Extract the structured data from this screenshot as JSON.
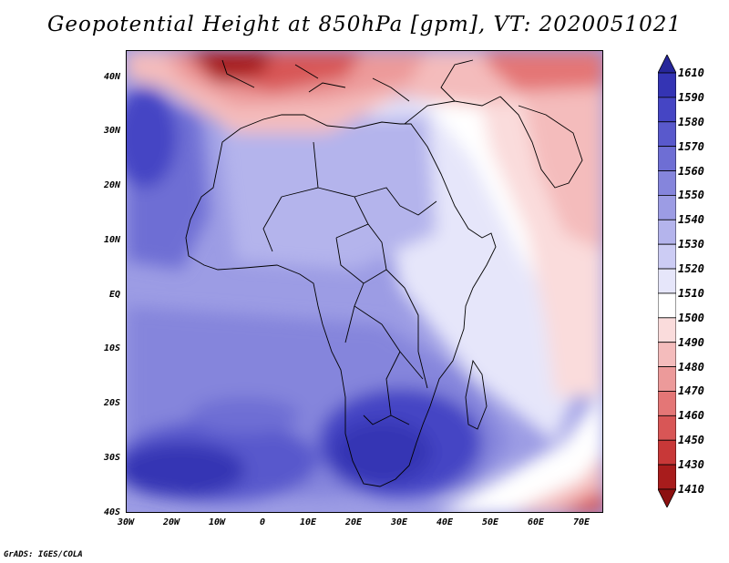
{
  "title": "Geopotential Height at 850hPa [gpm], VT: 2020051021",
  "footer": "GrADS: IGES/COLA",
  "map": {
    "variable": "Geopotential Height at 850hPa",
    "units": "gpm",
    "valid_time": "2020051021",
    "lon_range": [
      -30,
      75
    ],
    "lat_range": [
      -40,
      45
    ],
    "lat_labels": [
      "40N",
      "30N",
      "20N",
      "10N",
      "EQ",
      "10S",
      "20S",
      "30S",
      "40S"
    ],
    "lon_labels": [
      "30W",
      "20W",
      "10W",
      "0",
      "10E",
      "20E",
      "30E",
      "40E",
      "50E",
      "60E",
      "70E"
    ]
  },
  "colorbar": {
    "levels": [
      "1610",
      "1590",
      "1580",
      "1570",
      "1560",
      "1550",
      "1540",
      "1530",
      "1520",
      "1510",
      "1500",
      "1490",
      "1480",
      "1470",
      "1460",
      "1450",
      "1430",
      "1410"
    ],
    "colors": [
      "#26269a",
      "#3434b4",
      "#4545c4",
      "#5959cc",
      "#6e6ed4",
      "#8585dc",
      "#9c9ce4",
      "#b4b4ec",
      "#ccccf4",
      "#e6e6fa",
      "#ffffff",
      "#fadcdc",
      "#f4bcbc",
      "#ec9a9a",
      "#e47676",
      "#d85656",
      "#c83838",
      "#a81c1c",
      "#8c1010"
    ]
  }
}
